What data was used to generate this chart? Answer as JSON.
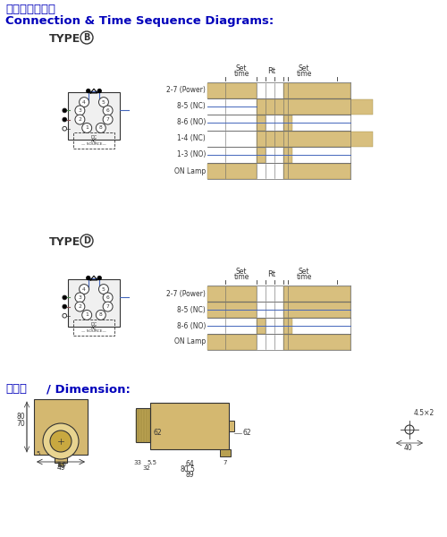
{
  "title_zh": "連接圖與時序圖",
  "title_en": "Connection & Time Sequence Diagrams:",
  "dim_title": "尺寸圖 / Dimension:",
  "type_b": "TYPE(B)",
  "type_d": "TYPE(D)",
  "bg_color": "#ffffff",
  "title_color": "#0000bb",
  "text_color": "#000000",
  "tan": "#d4b870",
  "blue_line": "#4466bb",
  "dark": "#333333",
  "gray": "#666666"
}
